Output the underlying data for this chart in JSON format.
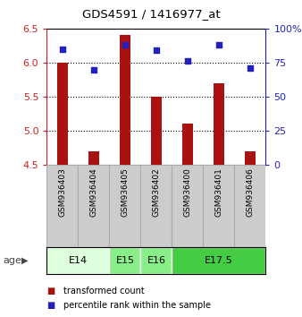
{
  "title": "GDS4591 / 1416977_at",
  "samples": [
    "GSM936403",
    "GSM936404",
    "GSM936405",
    "GSM936402",
    "GSM936400",
    "GSM936401",
    "GSM936406"
  ],
  "red_values": [
    6.0,
    4.7,
    6.4,
    5.5,
    5.1,
    5.7,
    4.7
  ],
  "blue_values": [
    85,
    70,
    88,
    84,
    76,
    88,
    71
  ],
  "ylim_left": [
    4.5,
    6.5
  ],
  "ylim_right": [
    0,
    100
  ],
  "yticks_left": [
    4.5,
    5.0,
    5.5,
    6.0,
    6.5
  ],
  "yticks_right": [
    0,
    25,
    50,
    75,
    100
  ],
  "ytick_labels_right": [
    "0",
    "25",
    "50",
    "75",
    "100%"
  ],
  "dotted_lines": [
    5.0,
    5.5,
    6.0
  ],
  "bar_color": "#aa1111",
  "dot_color": "#2222bb",
  "bar_bottom": 4.5,
  "bar_width": 0.35,
  "age_groups": [
    {
      "label": "E14",
      "samples": [
        "GSM936403",
        "GSM936404"
      ],
      "color": "#ddffdd"
    },
    {
      "label": "E15",
      "samples": [
        "GSM936405"
      ],
      "color": "#88ee88"
    },
    {
      "label": "E16",
      "samples": [
        "GSM936402"
      ],
      "color": "#88ee88"
    },
    {
      "label": "E17.5",
      "samples": [
        "GSM936400",
        "GSM936401",
        "GSM936406"
      ],
      "color": "#44cc44"
    }
  ],
  "sample_box_color": "#cccccc",
  "sample_box_edge": "#aaaaaa",
  "legend_red": "transformed count",
  "legend_blue": "percentile rank within the sample",
  "age_label": "age",
  "left_axis_color": "#cc2222",
  "right_axis_color": "#2222bb",
  "figsize": [
    3.38,
    3.54
  ],
  "dpi": 100
}
